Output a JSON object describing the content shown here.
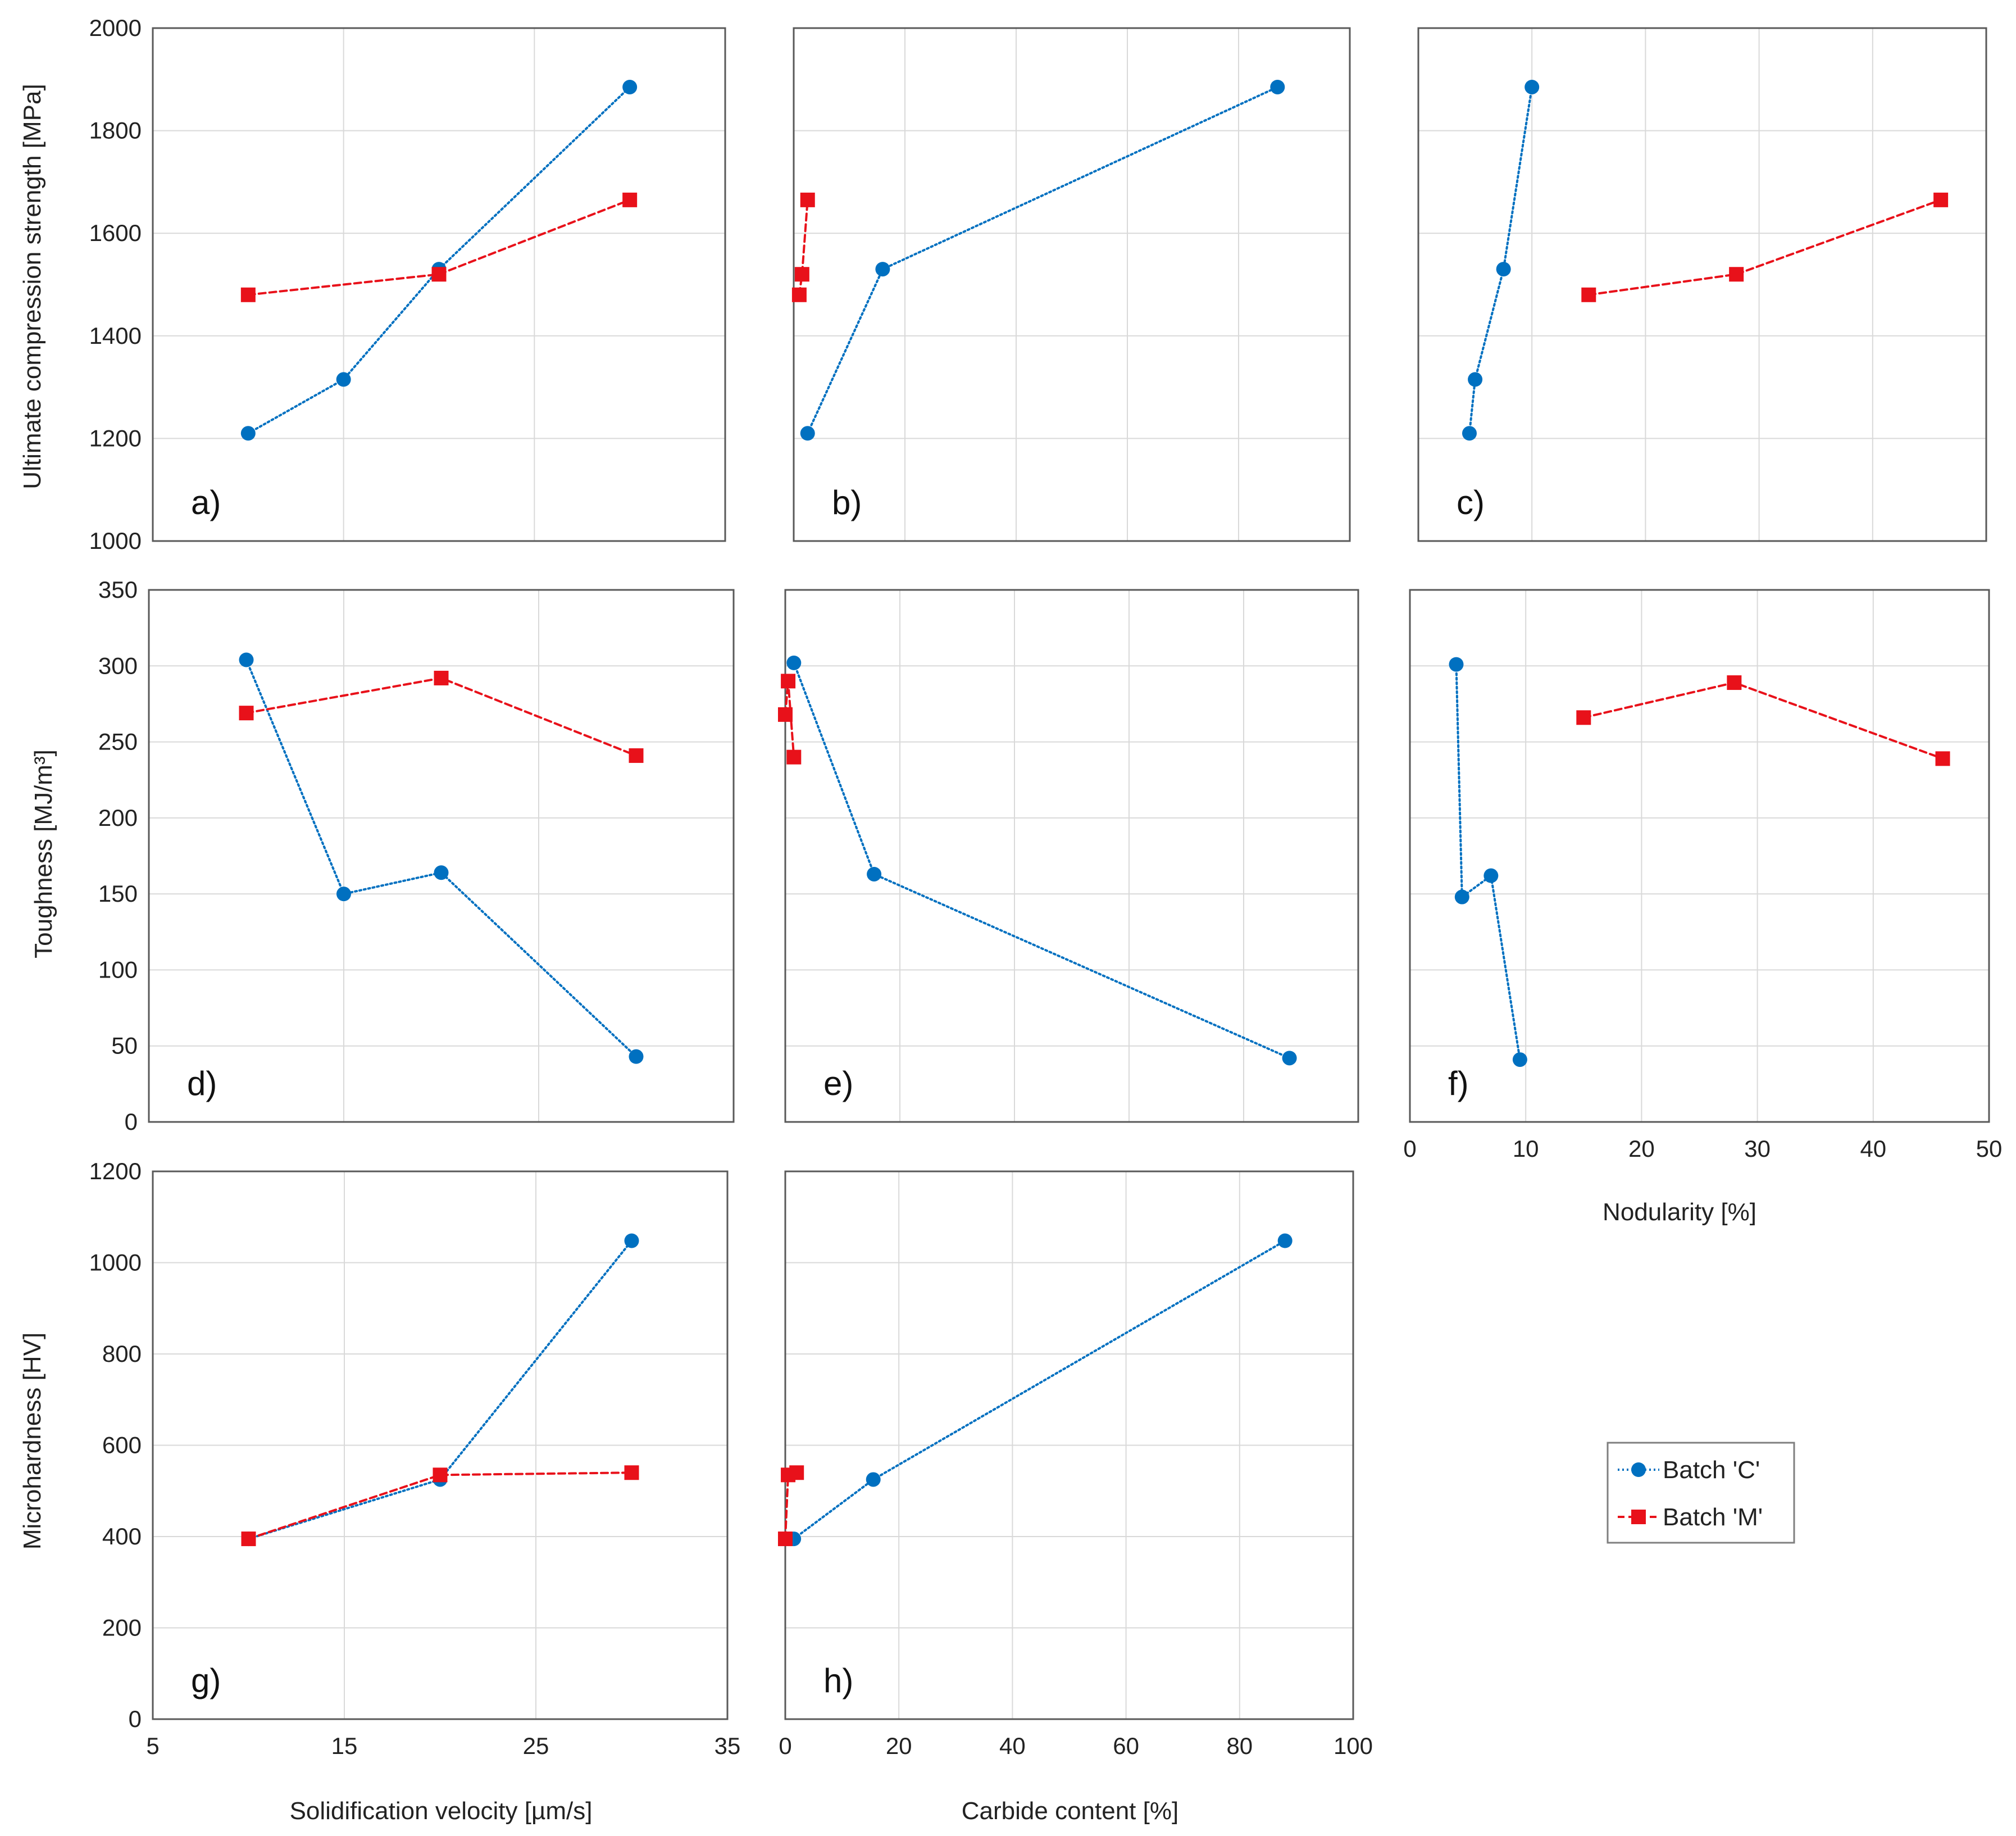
{
  "figure": {
    "legend": [
      {
        "name": "Batch 'C'",
        "color": "#0070C0",
        "marker": "circle",
        "line": "dotted"
      },
      {
        "name": "Batch 'M'",
        "color": "#E8111A",
        "marker": "square",
        "line": "dashed"
      }
    ],
    "shared_labels": {
      "ylabel_row1": "Ultimate compression strength [MPa]",
      "ylabel_row2": "Toughness [MJ/m³]",
      "ylabel_row3": "Microhardness [HV]",
      "xlabel_col1": "Solidification velocity [µm/s]",
      "xlabel_col2": "Carbide content [%]",
      "xlabel_col3": "Nodularity [%]"
    }
  },
  "chart_data": [
    {
      "id": "a",
      "label": "a)",
      "type": "line",
      "xlim": [
        5,
        35
      ],
      "xticks": [
        5,
        15,
        25,
        35
      ],
      "ylim": [
        1000,
        2000
      ],
      "yticks": [
        1000,
        1200,
        1400,
        1600,
        1800,
        2000
      ],
      "series": [
        {
          "name": "Batch 'C'",
          "x": [
            10,
            15,
            20,
            30
          ],
          "y": [
            1210,
            1315,
            1530,
            1885
          ]
        },
        {
          "name": "Batch 'M'",
          "x": [
            10,
            20,
            30
          ],
          "y": [
            1480,
            1520,
            1665
          ]
        }
      ]
    },
    {
      "id": "b",
      "label": "b)",
      "type": "line",
      "xlim": [
        0,
        100
      ],
      "xticks": [
        0,
        20,
        40,
        60,
        80,
        100
      ],
      "ylim": [
        1000,
        2000
      ],
      "yticks": [
        1000,
        1200,
        1400,
        1600,
        1800,
        2000
      ],
      "series": [
        {
          "name": "Batch 'C'",
          "x": [
            2.5,
            16,
            87
          ],
          "y": [
            1210,
            1530,
            1885
          ]
        },
        {
          "name": "Batch 'M'",
          "x": [
            1,
            1.5,
            2.5
          ],
          "y": [
            1480,
            1520,
            1665
          ]
        }
      ]
    },
    {
      "id": "c",
      "label": "c)",
      "type": "line",
      "xlim": [
        0,
        50
      ],
      "xticks": [
        0,
        10,
        20,
        30,
        40,
        50
      ],
      "ylim": [
        1000,
        2000
      ],
      "yticks": [
        1000,
        1200,
        1400,
        1600,
        1800,
        2000
      ],
      "series": [
        {
          "name": "Batch 'C'",
          "x": [
            4.5,
            5,
            7.5,
            10
          ],
          "y": [
            1210,
            1315,
            1530,
            1885
          ]
        },
        {
          "name": "Batch 'M'",
          "x": [
            15,
            28,
            46
          ],
          "y": [
            1480,
            1520,
            1665
          ]
        }
      ]
    },
    {
      "id": "d",
      "label": "d)",
      "type": "line",
      "xlim": [
        5,
        35
      ],
      "xticks": [
        5,
        15,
        25,
        35
      ],
      "ylim": [
        0,
        350
      ],
      "yticks": [
        0,
        50,
        100,
        150,
        200,
        250,
        300,
        350
      ],
      "series": [
        {
          "name": "Batch 'C'",
          "x": [
            10,
            15,
            20,
            30
          ],
          "y": [
            304,
            150,
            164,
            43
          ]
        },
        {
          "name": "Batch 'M'",
          "x": [
            10,
            20,
            30
          ],
          "y": [
            269,
            292,
            241
          ]
        }
      ]
    },
    {
      "id": "e",
      "label": "e)",
      "type": "line",
      "xlim": [
        0,
        100
      ],
      "xticks": [
        0,
        20,
        40,
        60,
        80,
        100
      ],
      "ylim": [
        0,
        350
      ],
      "yticks": [
        0,
        50,
        100,
        150,
        200,
        250,
        300,
        350
      ],
      "series": [
        {
          "name": "Batch 'C'",
          "x": [
            1.5,
            15.5,
            88
          ],
          "y": [
            302,
            163,
            42
          ]
        },
        {
          "name": "Batch 'M'",
          "x": [
            0,
            0.5,
            1.5
          ],
          "y": [
            268,
            290,
            240
          ]
        }
      ]
    },
    {
      "id": "f",
      "label": "f)",
      "type": "line",
      "xlim": [
        0,
        50
      ],
      "xticks": [
        0,
        10,
        20,
        30,
        40,
        50
      ],
      "ylim": [
        0,
        350
      ],
      "yticks": [
        0,
        50,
        100,
        150,
        200,
        250,
        300,
        350
      ],
      "series": [
        {
          "name": "Batch 'C'",
          "x": [
            4,
            4.5,
            7,
            9.5
          ],
          "y": [
            301,
            148,
            162,
            41
          ]
        },
        {
          "name": "Batch 'M'",
          "x": [
            15,
            28,
            46
          ],
          "y": [
            266,
            289,
            239
          ]
        }
      ]
    },
    {
      "id": "g",
      "label": "g)",
      "type": "line",
      "xlim": [
        5,
        35
      ],
      "xticks": [
        5,
        15,
        25,
        35
      ],
      "ylim": [
        0,
        1200
      ],
      "yticks": [
        0,
        200,
        400,
        600,
        800,
        1000,
        1200
      ],
      "series": [
        {
          "name": "Batch 'C'",
          "x": [
            10,
            20,
            30
          ],
          "y": [
            395,
            525,
            1048
          ]
        },
        {
          "name": "Batch 'M'",
          "x": [
            10,
            20,
            30
          ],
          "y": [
            395,
            535,
            540
          ]
        }
      ]
    },
    {
      "id": "h",
      "label": "h)",
      "type": "line",
      "xlim": [
        0,
        100
      ],
      "xticks": [
        0,
        20,
        40,
        60,
        80,
        100
      ],
      "ylim": [
        0,
        1200
      ],
      "yticks": [
        0,
        200,
        400,
        600,
        800,
        1000,
        1200
      ],
      "series": [
        {
          "name": "Batch 'C'",
          "x": [
            1.5,
            15.5,
            88
          ],
          "y": [
            395,
            525,
            1048
          ]
        },
        {
          "name": "Batch 'M'",
          "x": [
            0,
            0.5,
            2
          ],
          "y": [
            395,
            535,
            540
          ]
        }
      ]
    }
  ]
}
